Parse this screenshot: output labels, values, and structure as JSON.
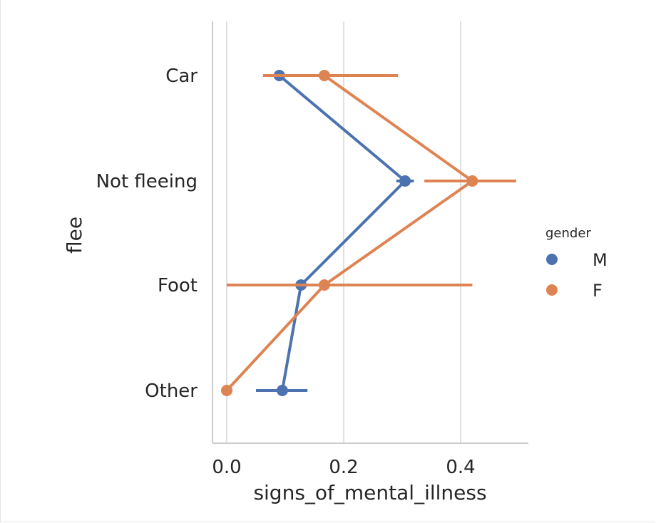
{
  "chart_data": {
    "type": "line",
    "orientation": "horizontal",
    "xlabel": "signs_of_mental_illness",
    "ylabel": "flee",
    "xlim": [
      -0.02,
      0.52
    ],
    "xticks": [
      "0.0",
      "0.2",
      "0.4"
    ],
    "xtick_values": [
      0.0,
      0.2,
      0.4
    ],
    "categories": [
      "Car",
      "Not fleeing",
      "Foot",
      "Other"
    ],
    "grid": "vertical",
    "legend": {
      "title": "gender",
      "placement": "right"
    },
    "series": [
      {
        "name": "M",
        "color": "#4c72b0",
        "values": [
          0.09,
          0.305,
          0.127,
          0.095
        ],
        "ci": [
          [
            0.09,
            0.09
          ],
          [
            0.29,
            0.32
          ],
          [
            0.127,
            0.127
          ],
          [
            0.05,
            0.138
          ]
        ]
      },
      {
        "name": "F",
        "color": "#dd8452",
        "values": [
          0.167,
          0.42,
          0.167,
          0.0
        ],
        "ci": [
          [
            0.062,
            0.293
          ],
          [
            0.338,
            0.495
          ],
          [
            0.0,
            0.42
          ],
          [
            0.0,
            0.0
          ]
        ]
      }
    ]
  }
}
